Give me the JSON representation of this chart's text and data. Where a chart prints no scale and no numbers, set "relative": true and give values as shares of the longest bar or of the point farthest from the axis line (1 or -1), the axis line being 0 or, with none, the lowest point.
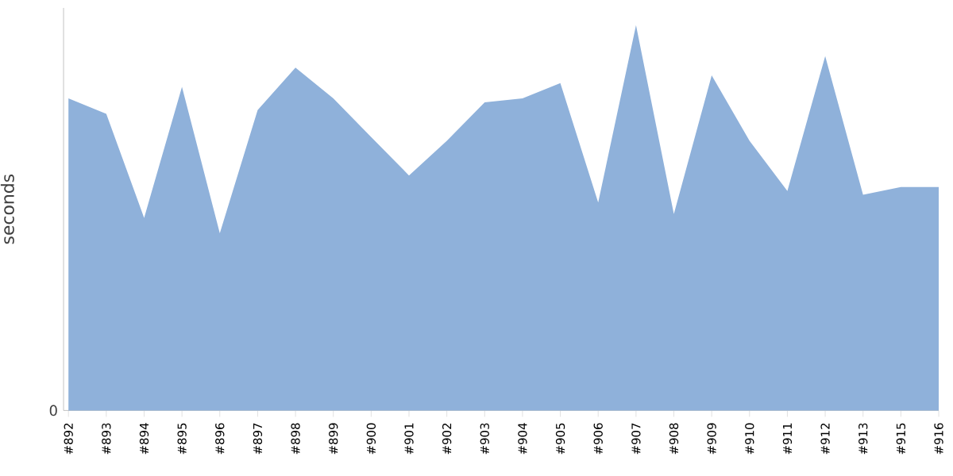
{
  "chart_data": {
    "type": "area",
    "relative": true,
    "ylabel": "seconds",
    "annotations": [
      "0"
    ],
    "categories": [
      "#892",
      "#893",
      "#894",
      "#895",
      "#896",
      "#897",
      "#898",
      "#899",
      "#900",
      "#901",
      "#902",
      "#903",
      "#904",
      "#905",
      "#906",
      "#907",
      "#908",
      "#909",
      "#910",
      "#911",
      "#912",
      "#913",
      "#915",
      "#916"
    ],
    "values": [
      0.81,
      0.77,
      0.5,
      0.84,
      0.46,
      0.78,
      0.89,
      0.81,
      0.71,
      0.61,
      0.7,
      0.8,
      0.81,
      0.85,
      0.54,
      1,
      0.51,
      0.87,
      0.7,
      0.57,
      0.92,
      0.56,
      0.58,
      0.58
    ],
    "color": "#8fb1da"
  }
}
